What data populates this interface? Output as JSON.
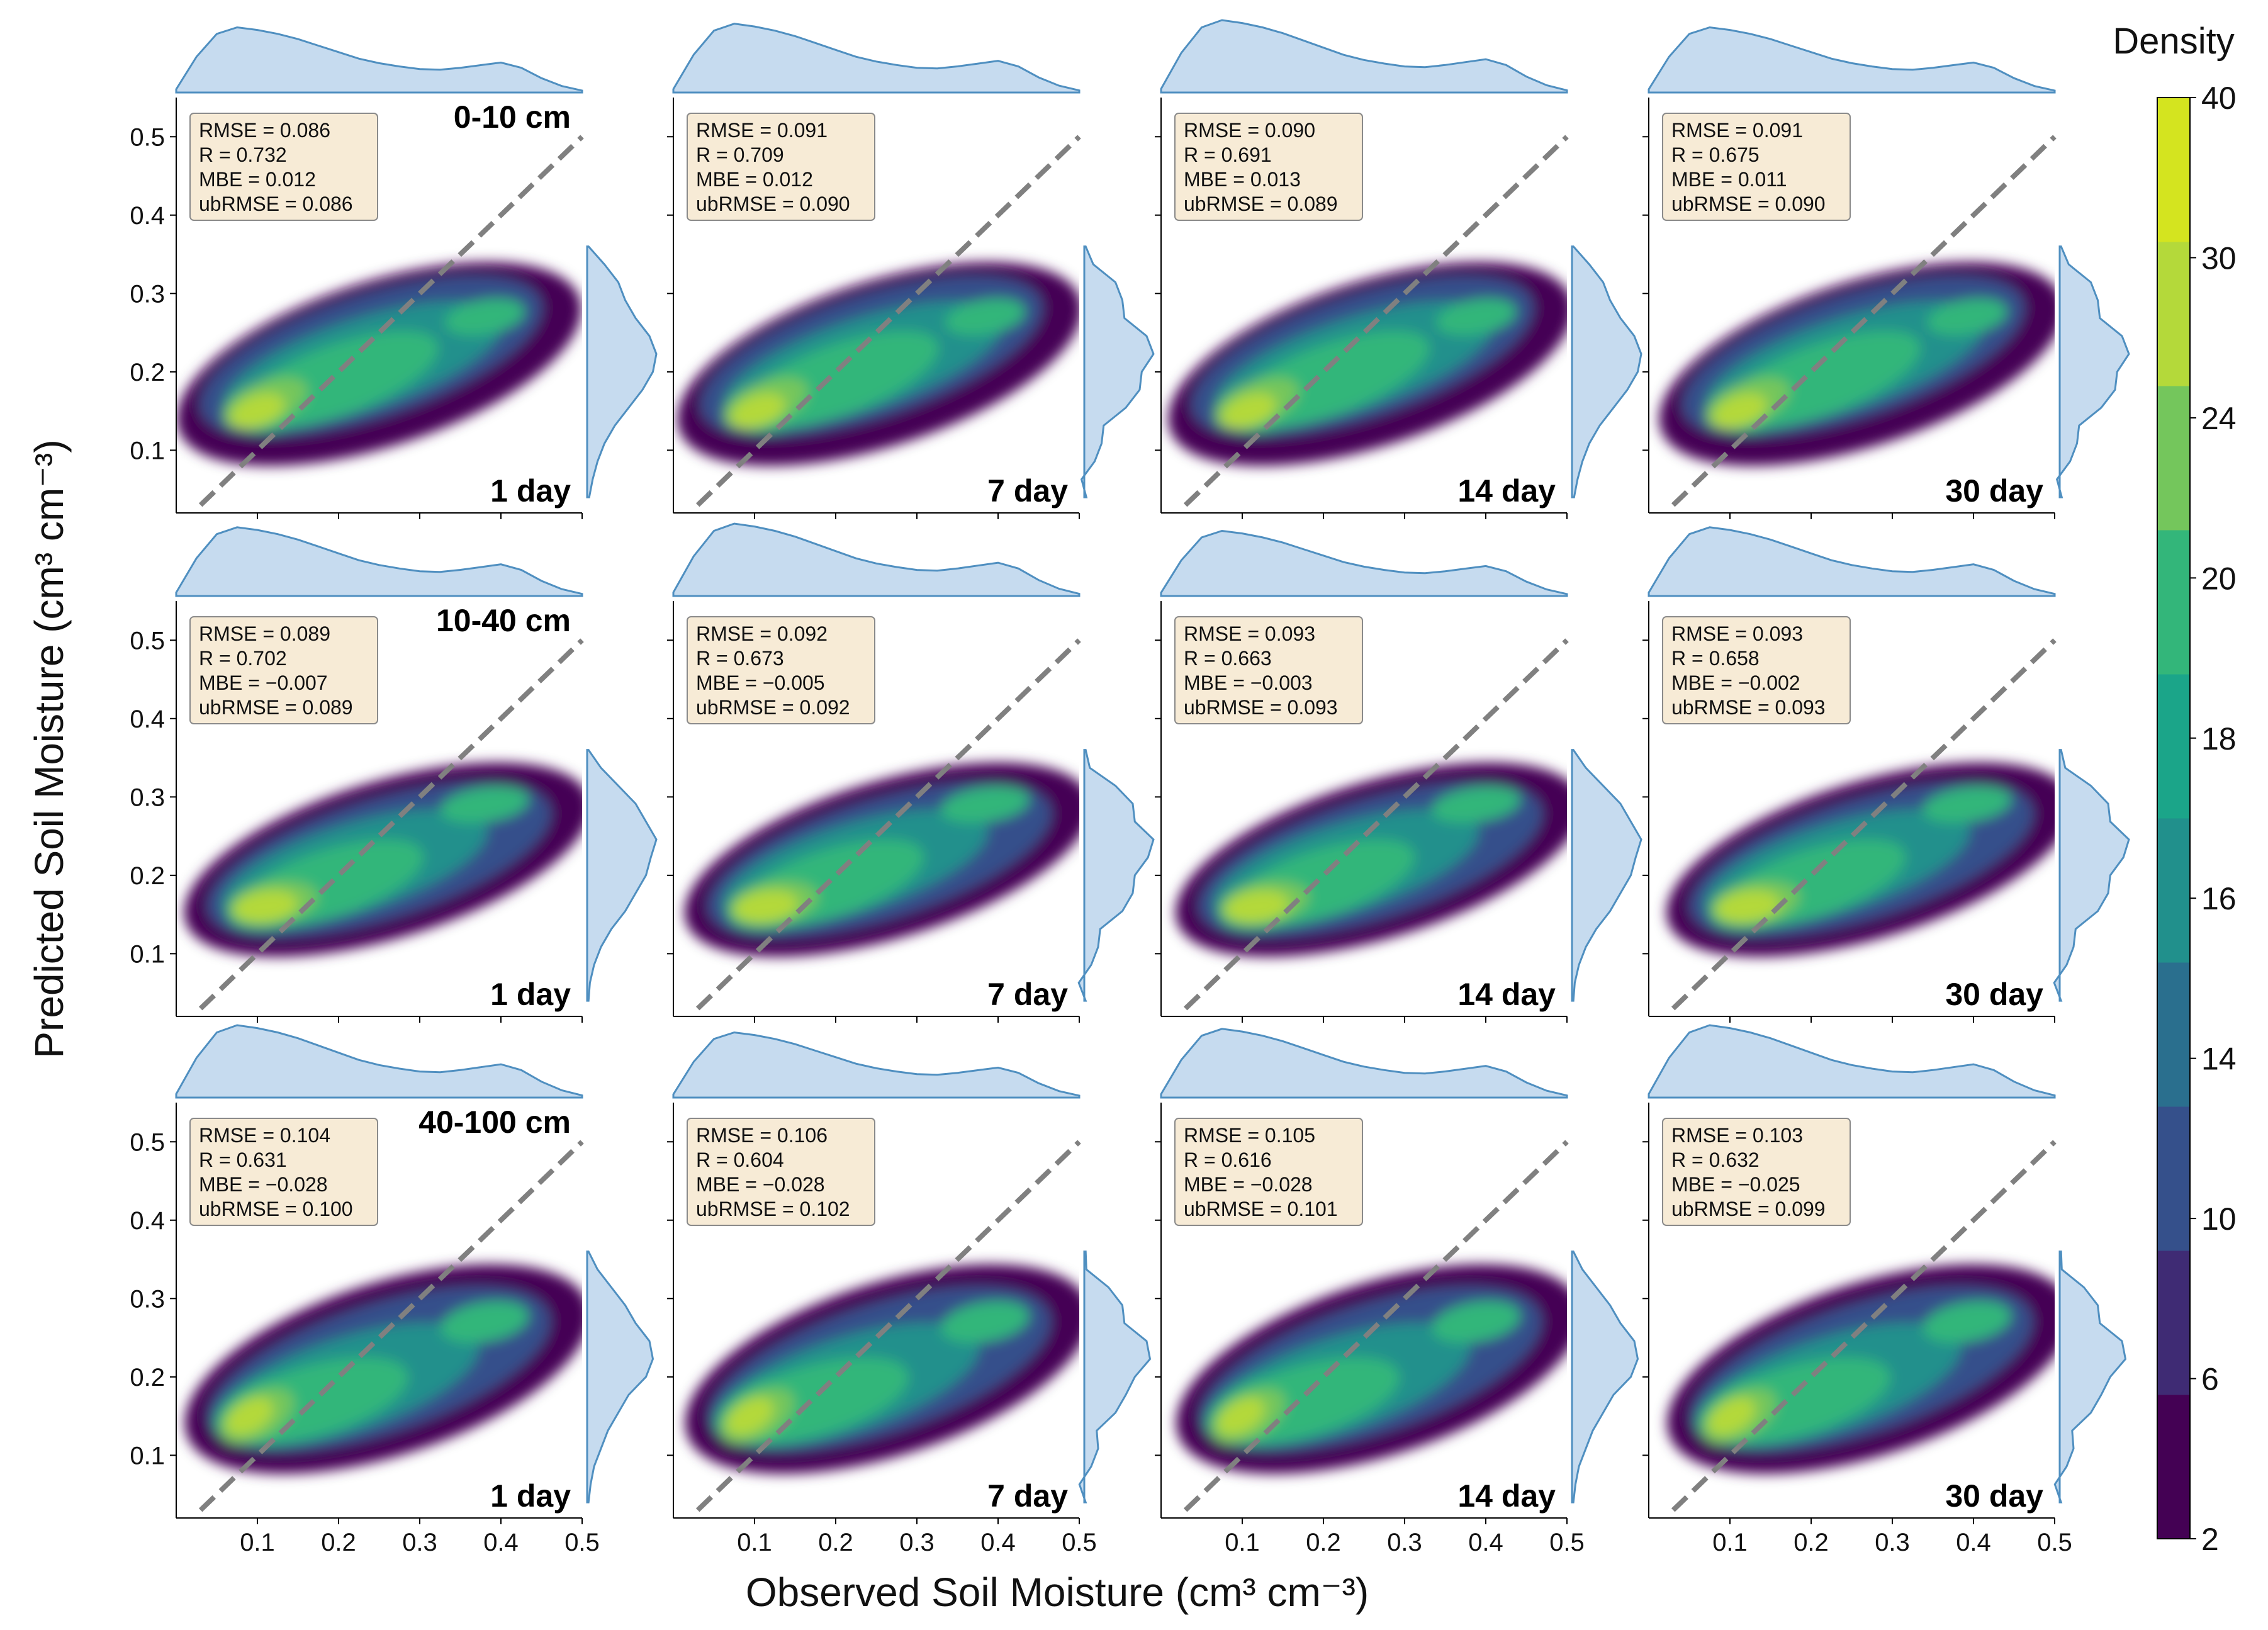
{
  "figure": {
    "xlabel": "Observed Soil Moisture (cm³ cm⁻³)",
    "ylabel": "Predicted Soil Moisture (cm³ cm⁻³)"
  },
  "chart_data": {
    "type": "density-contour grid with marginal KDEs",
    "xlim": [
      0.0,
      0.5
    ],
    "ylim": [
      0.02,
      0.55
    ],
    "xticks": [
      "0.1",
      "0.2",
      "0.3",
      "0.4",
      "0.5"
    ],
    "yticks": [
      "0.1",
      "0.2",
      "0.3",
      "0.4",
      "0.5"
    ],
    "one_to_one_line": {
      "from": [
        0.03,
        0.03
      ],
      "to": [
        0.5,
        0.5
      ],
      "color": "#808080",
      "style": "dashed"
    },
    "colorbar": {
      "title": "Density",
      "levels": [
        "2",
        "6",
        "10",
        "14",
        "16",
        "18",
        "20",
        "24",
        "30",
        "40"
      ],
      "colors": [
        "#440154",
        "#3f2b74",
        "#35508b",
        "#2a6f8e",
        "#21908c",
        "#1ba589",
        "#33b67a",
        "#74c65c",
        "#b4d93a",
        "#d4e41f"
      ]
    },
    "stat_labels": [
      "RMSE",
      "R",
      "MBE",
      "ubRMSE"
    ],
    "rows": [
      {
        "depth": "0-10 cm",
        "panels": [
          {
            "lead": "1 day",
            "stats": {
              "RMSE": "0.086",
              "R": "0.732",
              "MBE": "0.012",
              "ubRMSE": "0.086"
            }
          },
          {
            "lead": "7 day",
            "stats": {
              "RMSE": "0.091",
              "R": "0.709",
              "MBE": "0.012",
              "ubRMSE": "0.090"
            }
          },
          {
            "lead": "14 day",
            "stats": {
              "RMSE": "0.090",
              "R": "0.691",
              "MBE": "0.013",
              "ubRMSE": "0.089"
            }
          },
          {
            "lead": "30 day",
            "stats": {
              "RMSE": "0.091",
              "R": "0.675",
              "MBE": "0.011",
              "ubRMSE": "0.090"
            }
          }
        ]
      },
      {
        "depth": "10-40 cm",
        "panels": [
          {
            "lead": "1 day",
            "stats": {
              "RMSE": "0.089",
              "R": "0.702",
              "MBE": "−0.007",
              "ubRMSE": "0.089"
            }
          },
          {
            "lead": "7 day",
            "stats": {
              "RMSE": "0.092",
              "R": "0.673",
              "MBE": "−0.005",
              "ubRMSE": "0.092"
            }
          },
          {
            "lead": "14 day",
            "stats": {
              "RMSE": "0.093",
              "R": "0.663",
              "MBE": "−0.003",
              "ubRMSE": "0.093"
            }
          },
          {
            "lead": "30 day",
            "stats": {
              "RMSE": "0.093",
              "R": "0.658",
              "MBE": "−0.002",
              "ubRMSE": "0.093"
            }
          }
        ]
      },
      {
        "depth": "40-100 cm",
        "panels": [
          {
            "lead": "1 day",
            "stats": {
              "RMSE": "0.104",
              "R": "0.631",
              "MBE": "−0.028",
              "ubRMSE": "0.100"
            }
          },
          {
            "lead": "7 day",
            "stats": {
              "RMSE": "0.106",
              "R": "0.604",
              "MBE": "−0.028",
              "ubRMSE": "0.102"
            }
          },
          {
            "lead": "14 day",
            "stats": {
              "RMSE": "0.105",
              "R": "0.616",
              "MBE": "−0.028",
              "ubRMSE": "0.101"
            }
          },
          {
            "lead": "30 day",
            "stats": {
              "RMSE": "0.103",
              "R": "0.632",
              "MBE": "−0.025",
              "ubRMSE": "0.099"
            }
          }
        ]
      }
    ]
  }
}
